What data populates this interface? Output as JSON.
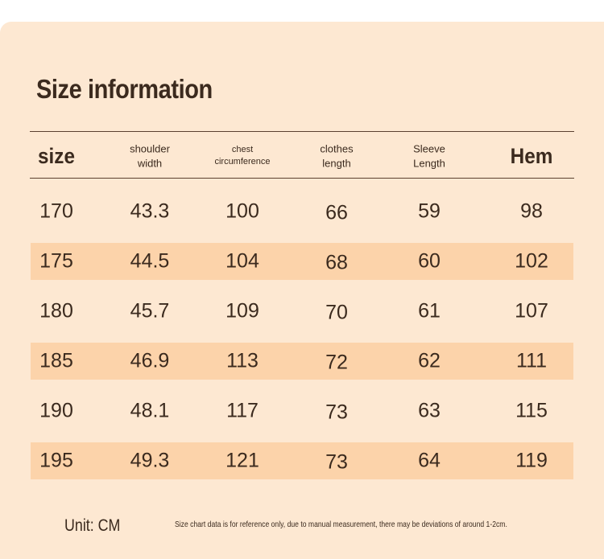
{
  "header": {
    "title": "Size information"
  },
  "table": {
    "columns": [
      [
        "size"
      ],
      [
        "shoulder",
        "width"
      ],
      [
        "chest",
        "circumference"
      ],
      [
        "clothes",
        "length"
      ],
      [
        "Sleeve",
        "Length"
      ],
      [
        "Hem"
      ]
    ],
    "rows": [
      [
        170,
        43.3,
        100,
        66,
        59,
        98
      ],
      [
        175,
        44.5,
        104,
        68,
        60,
        102
      ],
      [
        180,
        45.7,
        109,
        70,
        61,
        107
      ],
      [
        185,
        46.9,
        113,
        72,
        62,
        111
      ],
      [
        190,
        48.1,
        117,
        73,
        63,
        115
      ],
      [
        195,
        49.3,
        121,
        73,
        64,
        119
      ]
    ]
  },
  "footer": {
    "unit": "Unit: CM",
    "note": "Size chart data is for reference only, due to manual measurement, there may be deviations of around 1-2cm."
  }
}
